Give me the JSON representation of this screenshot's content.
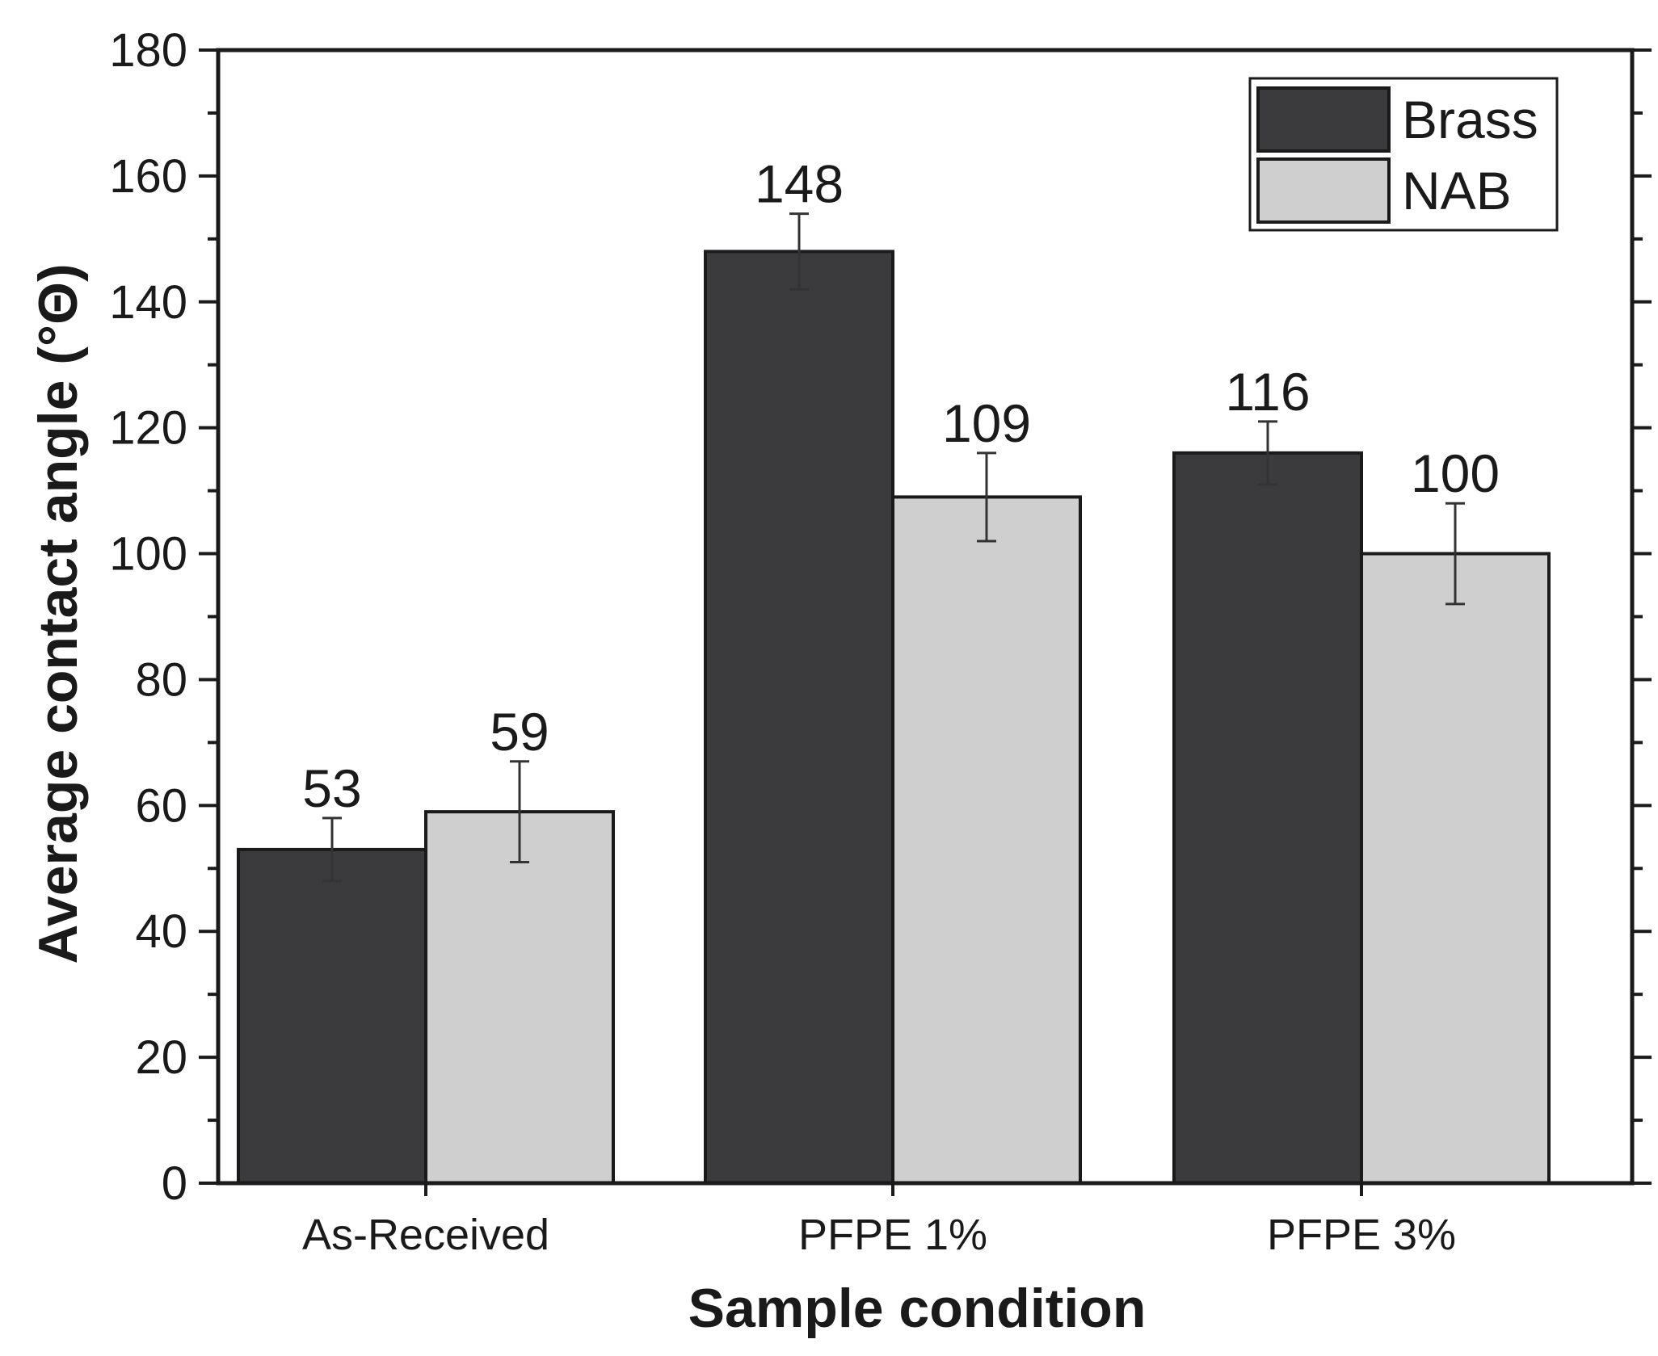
{
  "chart_data": {
    "type": "bar",
    "title": "",
    "xlabel": "Sample condition",
    "ylabel": "Average contact angle (°Θ)",
    "ylim": [
      0,
      180
    ],
    "yticks": [
      0,
      20,
      40,
      60,
      80,
      100,
      120,
      140,
      160,
      180
    ],
    "categories": [
      "As-Received",
      "PFPE 1%",
      "PFPE 3%"
    ],
    "series": [
      {
        "name": "Brass",
        "color": "#3b3b3d",
        "values": [
          53,
          148,
          116
        ],
        "errors": [
          5,
          6,
          5
        ],
        "labels": [
          "53",
          "148",
          "116"
        ]
      },
      {
        "name": "NAB",
        "color": "#cfcfcf",
        "values": [
          59,
          109,
          100
        ],
        "errors": [
          8,
          7,
          8
        ],
        "labels": [
          "59",
          "109",
          "100"
        ]
      }
    ],
    "legend": {
      "position": "top-right",
      "entries": [
        "Brass",
        "NAB"
      ]
    },
    "grid": false
  }
}
